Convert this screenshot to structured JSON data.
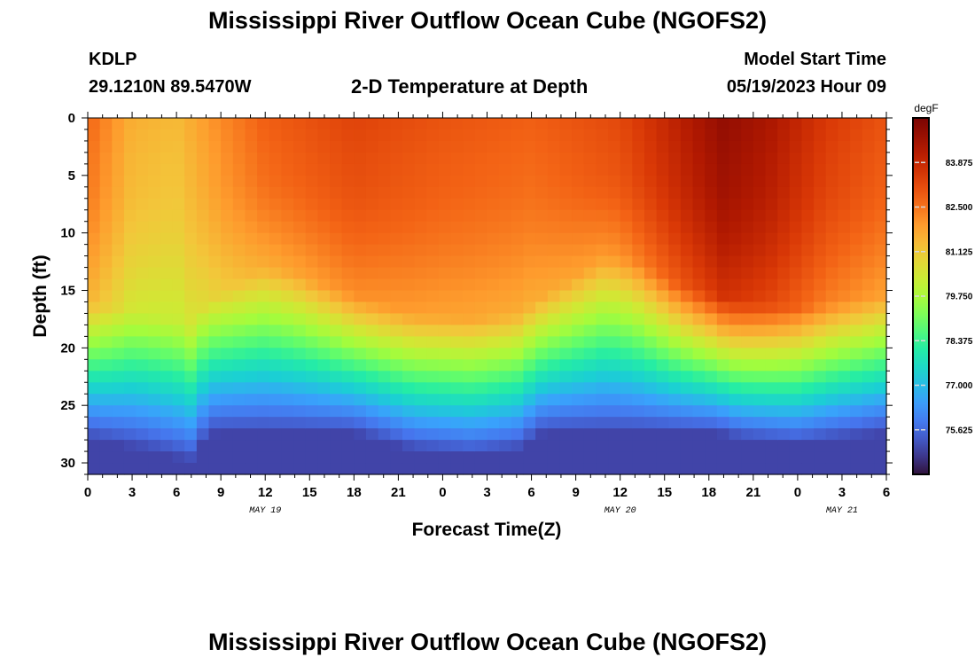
{
  "header": {
    "title": "Mississippi River Outflow Ocean Cube (NGOFS2)",
    "station": "KDLP",
    "location": "29.1210N  89.5470W",
    "subtitle": "2-D Temperature at Depth",
    "model_start_label": "Model Start Time",
    "model_start_value": "05/19/2023 Hour 09"
  },
  "footer_title": "Mississippi River Outflow Ocean Cube (NGOFS2)",
  "chart_data": {
    "type": "heatmap",
    "title": "2-D Temperature at Depth",
    "xlabel": "Forecast Time(Z)",
    "ylabel": "Depth (ft)",
    "x_hours_range": [
      0,
      54
    ],
    "x_tick_labels": [
      "0",
      "3",
      "6",
      "9",
      "12",
      "15",
      "18",
      "21",
      "0",
      "3",
      "6",
      "9",
      "12",
      "15",
      "18",
      "21",
      "0",
      "3",
      "6"
    ],
    "date_labels": [
      {
        "hour": 12,
        "label": "MAY 19"
      },
      {
        "hour": 36,
        "label": "MAY 20"
      },
      {
        "hour": 51,
        "label": "MAY 21"
      }
    ],
    "y_range": [
      0,
      31
    ],
    "y_ticks": [
      0,
      5,
      10,
      15,
      20,
      25,
      30
    ],
    "y_inverted": true,
    "colorbar": {
      "unit": "degF",
      "min": 74.25,
      "max": 85.25,
      "ticks": [
        83.875,
        82.5,
        81.125,
        79.75,
        78.375,
        77.0,
        75.625
      ],
      "tick_labels": [
        "83.875",
        "82.500",
        "81.125",
        "79.750",
        "78.375",
        "77.000",
        "75.625"
      ],
      "colormap": "turbo"
    },
    "thermocline_depth_ft": [
      {
        "hour": 0,
        "depth": 16
      },
      {
        "hour": 4,
        "depth": 17
      },
      {
        "hour": 7,
        "depth": 18
      },
      {
        "hour": 8,
        "depth": 16
      },
      {
        "hour": 10,
        "depth": 14.5
      },
      {
        "hour": 12,
        "depth": 13
      },
      {
        "hour": 14,
        "depth": 13.5
      },
      {
        "hour": 18,
        "depth": 15.5
      },
      {
        "hour": 22,
        "depth": 17
      },
      {
        "hour": 26,
        "depth": 17.5
      },
      {
        "hour": 29,
        "depth": 17
      },
      {
        "hour": 32,
        "depth": 14.5
      },
      {
        "hour": 35,
        "depth": 12
      },
      {
        "hour": 37,
        "depth": 12.5
      },
      {
        "hour": 40,
        "depth": 14.5
      },
      {
        "hour": 44,
        "depth": 16
      },
      {
        "hour": 48,
        "depth": 16.5
      },
      {
        "hour": 51,
        "depth": 16
      },
      {
        "hour": 54,
        "depth": 15.5
      }
    ],
    "surface_temperature_degF": [
      {
        "hour": 0,
        "value": 82.7
      },
      {
        "hour": 3,
        "value": 81.6
      },
      {
        "hour": 6,
        "value": 81.4
      },
      {
        "hour": 9,
        "value": 82.2
      },
      {
        "hour": 12,
        "value": 82.8
      },
      {
        "hour": 18,
        "value": 83.3
      },
      {
        "hour": 24,
        "value": 83.0
      },
      {
        "hour": 30,
        "value": 82.8
      },
      {
        "hour": 36,
        "value": 83.2
      },
      {
        "hour": 40,
        "value": 84.1
      },
      {
        "hour": 43,
        "value": 84.8
      },
      {
        "hour": 46,
        "value": 84.4
      },
      {
        "hour": 50,
        "value": 83.5
      },
      {
        "hour": 54,
        "value": 83.0
      }
    ],
    "bottom_temperature_degF": 75.0
  }
}
